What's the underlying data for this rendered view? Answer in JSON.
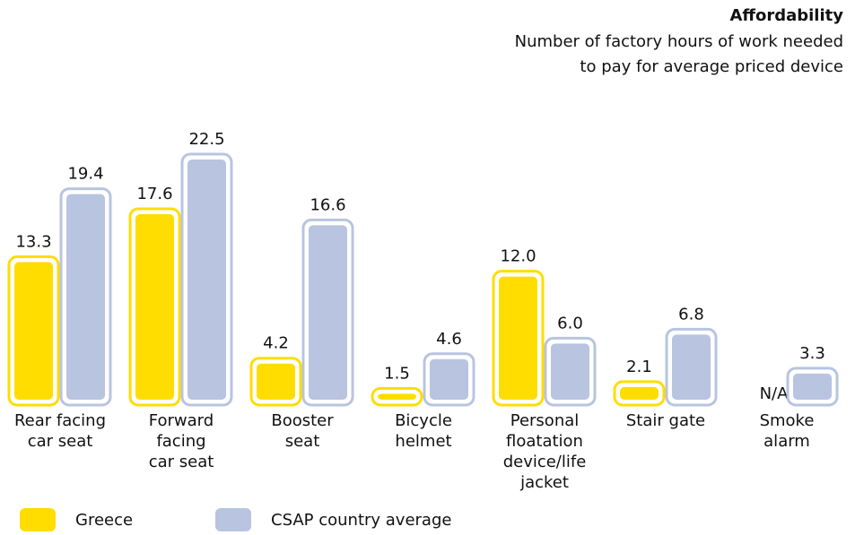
{
  "chart_data": {
    "type": "bar",
    "title": "Affordability",
    "subtitle": [
      "Number of factory hours of work needed",
      "to pay for average priced device"
    ],
    "categories": [
      [
        "Rear facing",
        "car seat"
      ],
      [
        "Forward",
        "facing",
        "car seat"
      ],
      [
        "Booster",
        "seat"
      ],
      [
        "Bicycle",
        "helmet"
      ],
      [
        "Personal",
        "floatation",
        "device/life",
        "jacket"
      ],
      [
        "Stair gate"
      ],
      [
        "Smoke",
        "alarm"
      ]
    ],
    "series": [
      {
        "name": "Greece",
        "color": "#ffdd00",
        "values": [
          13.3,
          17.6,
          4.2,
          1.5,
          12.0,
          2.1,
          null
        ],
        "value_labels": [
          "13.3",
          "17.6",
          "4.2",
          "1.5",
          "12.0",
          "2.1",
          "N/A"
        ]
      },
      {
        "name": "CSAP country average",
        "color": "#b8c4e0",
        "values": [
          19.4,
          22.5,
          16.6,
          4.6,
          6.0,
          6.8,
          3.3
        ],
        "value_labels": [
          "19.4",
          "22.5",
          "16.6",
          "4.6",
          "6.0",
          "6.8",
          "3.3"
        ]
      }
    ]
  }
}
